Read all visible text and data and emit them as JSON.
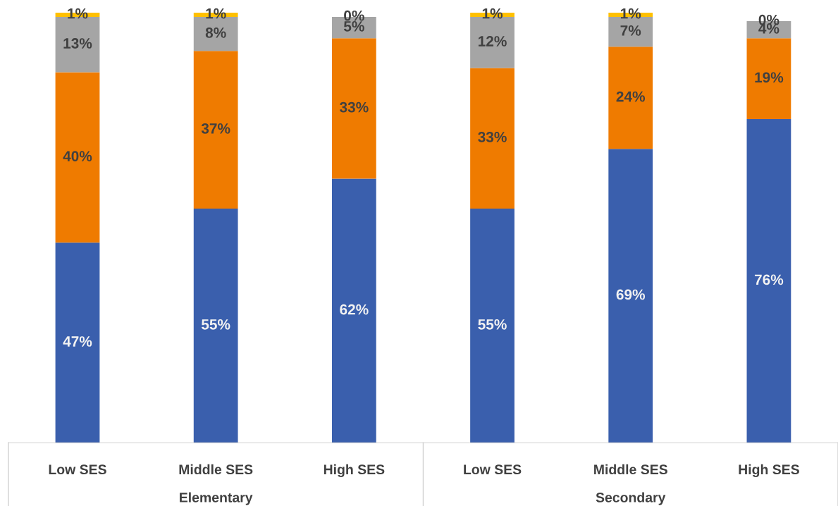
{
  "chart_data": {
    "type": "bar",
    "stacked": true,
    "categories": [
      "Low SES",
      "Middle SES",
      "High SES",
      "Low SES",
      "Middle SES",
      "High SES"
    ],
    "series": [
      {
        "color": "#3a5fad",
        "values": [
          47,
          55,
          62,
          55,
          69,
          76
        ],
        "value_labels": [
          "47%",
          "55%",
          "62%",
          "55%",
          "69%",
          "76%"
        ]
      },
      {
        "color": "#ef7b00",
        "values": [
          40,
          37,
          33,
          33,
          24,
          19
        ],
        "value_labels": [
          "40%",
          "37%",
          "33%",
          "33%",
          "24%",
          "19%"
        ]
      },
      {
        "color": "#a5a5a5",
        "values": [
          13,
          8,
          5,
          12,
          7,
          4
        ],
        "value_labels": [
          "13%",
          "8%",
          "5%",
          "12%",
          "7%",
          "4%"
        ]
      },
      {
        "color": "#ffc000",
        "values": [
          1,
          1,
          0,
          1,
          1,
          0
        ],
        "value_labels": [
          "1%",
          "1%",
          "0%",
          "1%",
          "1%",
          "0%"
        ]
      }
    ],
    "annotations": [
      "Elementary",
      "Secondary"
    ],
    "legend": false,
    "grid": false
  }
}
